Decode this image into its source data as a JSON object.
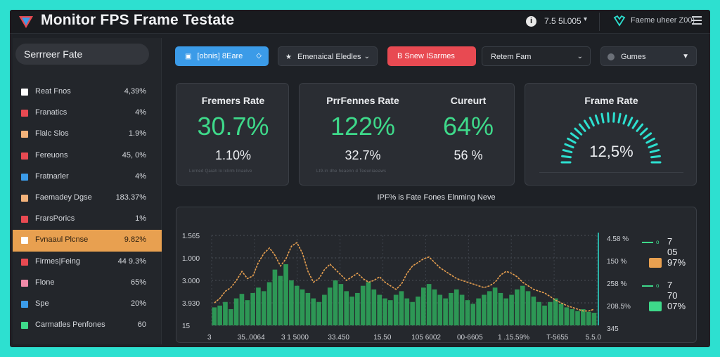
{
  "header": {
    "title": "Monitor FPS Frame Testate",
    "info_icon": "info-icon",
    "value": "7.5 5l.005",
    "user": "Faeme uheer Z00)"
  },
  "sidebar": {
    "title": "Serrreer Fate",
    "items": [
      {
        "label": "Reat Fnos",
        "value": "4,39%",
        "color": "#ffffff"
      },
      {
        "label": "Franatics",
        "value": "4%",
        "color": "#e84a52"
      },
      {
        "label": "Flalc Slos",
        "value": "1.9%",
        "color": "#f2b27a"
      },
      {
        "label": "Fereuons",
        "value": "45, 0%",
        "color": "#e84a52"
      },
      {
        "label": "Fratnarler",
        "value": "4%",
        "color": "#3b9be8"
      },
      {
        "label": "Faemadey Dgse",
        "value": "183.37%",
        "color": "#f2b27a"
      },
      {
        "label": "FrarsPorics",
        "value": "1%",
        "color": "#e84a52"
      },
      {
        "label": "Fvnaaul Plcnse",
        "value": "9.82%",
        "color": "#ffffff"
      },
      {
        "label": "Firmes|Feing",
        "value": "44 9.3%",
        "color": "#e84a52"
      },
      {
        "label": "Flone",
        "value": "65%",
        "color": "#f08aa8"
      },
      {
        "label": "Spe",
        "value": "20%",
        "color": "#3b9be8"
      },
      {
        "label": "Carmatles Penfones",
        "value": "60",
        "color": "#3ed98a"
      }
    ]
  },
  "filters": {
    "f1": "[obnis] 8Eare",
    "f2": "Emenaical Eledles",
    "f3": "B Snew ISarmes",
    "f4": "Retem Fam",
    "f5": "Gumes"
  },
  "cards": {
    "c1": {
      "title": "Fremers Rate",
      "big": "30.7%",
      "sub": "1.10%",
      "foot": "Lorned Qaiah lo lclirm llnaelve"
    },
    "c2": {
      "title_a": "PrrFennes Rate",
      "big_a": "122%",
      "sub_a": "32.7%",
      "foot_a": "Lt9-in dhe heaenn d Teeuniaeaws",
      "title_b": "Cureurt",
      "big_b": "64%",
      "sub_b": "56 %"
    },
    "c3": {
      "title": "Frame Rate",
      "value": "12,5%"
    }
  },
  "chart": {
    "title": "IPF% is Fate Fones Elnming Neve",
    "y_left": [
      "1.565",
      "1.000",
      "3.000",
      "3.930",
      "15"
    ],
    "y_right": [
      "4.58 %",
      "150 %",
      "258 %",
      "208.5%",
      "345"
    ],
    "x_labels": [
      "3",
      "35..0064",
      "3 1 5000",
      "33.450",
      "15.50",
      "105 6002",
      "00-6605",
      "1 .15.59%",
      "T-5655",
      "5.5.0"
    ],
    "legend": [
      {
        "type": "line",
        "label": "7 05"
      },
      {
        "type": "square",
        "color": "#e8a050",
        "label": "97%"
      },
      {
        "type": "line",
        "label": "7 70"
      },
      {
        "type": "square",
        "color": "#3ed98a",
        "label": "07%"
      }
    ]
  },
  "chart_data": {
    "type": "bar",
    "title": "IPF% is Fate Fones Elnming Neve",
    "xlabel": "",
    "ylabel": "",
    "series": [
      {
        "name": "",
        "kind": "line",
        "color": "#e8a050",
        "values": [
          0.25,
          0.3,
          0.38,
          0.42,
          0.5,
          0.6,
          0.52,
          0.55,
          0.7,
          0.8,
          0.86,
          0.78,
          0.66,
          0.74,
          0.88,
          0.92,
          0.8,
          0.6,
          0.48,
          0.52,
          0.62,
          0.68,
          0.62,
          0.56,
          0.5,
          0.54,
          0.58,
          0.52,
          0.48,
          0.5,
          0.54,
          0.48,
          0.44,
          0.4,
          0.46,
          0.58,
          0.66,
          0.7,
          0.74,
          0.76,
          0.7,
          0.64,
          0.6,
          0.56,
          0.52,
          0.5,
          0.48,
          0.46,
          0.44,
          0.42,
          0.44,
          0.48,
          0.56,
          0.6,
          0.58,
          0.54,
          0.48,
          0.44,
          0.4,
          0.38,
          0.36,
          0.32,
          0.28,
          0.25,
          0.22,
          0.2,
          0.18,
          0.16,
          0.16,
          0.18
        ]
      },
      {
        "name": "",
        "kind": "bar",
        "color": "#2fa35a",
        "values": [
          0.2,
          0.22,
          0.26,
          0.18,
          0.3,
          0.35,
          0.28,
          0.36,
          0.42,
          0.38,
          0.48,
          0.62,
          0.55,
          0.68,
          0.5,
          0.44,
          0.4,
          0.36,
          0.3,
          0.26,
          0.34,
          0.42,
          0.5,
          0.46,
          0.38,
          0.32,
          0.36,
          0.44,
          0.48,
          0.4,
          0.34,
          0.3,
          0.28,
          0.34,
          0.38,
          0.3,
          0.26,
          0.32,
          0.42,
          0.46,
          0.4,
          0.34,
          0.3,
          0.36,
          0.4,
          0.34,
          0.28,
          0.24,
          0.3,
          0.34,
          0.38,
          0.42,
          0.36,
          0.3,
          0.34,
          0.4,
          0.44,
          0.38,
          0.32,
          0.26,
          0.22,
          0.26,
          0.3,
          0.24,
          0.2,
          0.18,
          0.16,
          0.18,
          0.15,
          0.14
        ]
      }
    ],
    "ylim": [
      0,
      1
    ],
    "grid": true,
    "legend_position": "right"
  }
}
